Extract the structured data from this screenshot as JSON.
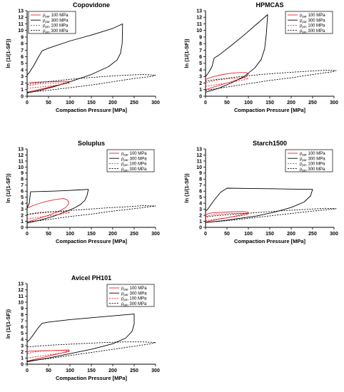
{
  "chart_data": [
    {
      "type": "line",
      "title": "Copovidone",
      "xlabel": "Compaction Pressure [MPa]",
      "ylabel": "ln (1/(1-SF))",
      "xlim": [
        0,
        300
      ],
      "ylim": [
        0,
        13
      ],
      "xticks": [
        0,
        50,
        100,
        150,
        200,
        250,
        300
      ],
      "yticks": [
        0,
        1,
        2,
        3,
        4,
        5,
        6,
        7,
        8,
        9,
        10,
        11,
        12,
        13
      ],
      "grid": false,
      "legend": "top-left",
      "legend_entries": [
        {
          "symbol": "ρ",
          "sub": "par",
          "label": "100 MPa",
          "color": "#e8242b",
          "dash": "solid"
        },
        {
          "symbol": "ρ",
          "sub": "par",
          "label": "300 MPa",
          "color": "#000000",
          "dash": "solid"
        },
        {
          "symbol": "ρ",
          "sub": "pm",
          "label": "100 MPa",
          "color": "#e8242b",
          "dash": "dotted"
        },
        {
          "symbol": "ρ",
          "sub": "pm",
          "label": "300 MPa",
          "color": "#000000",
          "dash": "dotted"
        }
      ],
      "series": [
        {
          "color": "#e8242b",
          "dash": "solid",
          "x": [
            0,
            20,
            50,
            80,
            97,
            98,
            80,
            50,
            25,
            10,
            4
          ],
          "y": [
            0.6,
            0.9,
            1.35,
            1.8,
            2.1,
            2.25,
            2.25,
            2.2,
            2.15,
            2.1,
            2.05
          ]
        },
        {
          "color": "#000000",
          "dash": "solid",
          "x": [
            0,
            30,
            60,
            100,
            150,
            190,
            210,
            218,
            222,
            223,
            200,
            150,
            100,
            50,
            35,
            25,
            15,
            5,
            0
          ],
          "y": [
            0.5,
            0.9,
            1.4,
            2.2,
            3.3,
            4.5,
            5.5,
            6.5,
            8.0,
            11.0,
            10.3,
            9.3,
            8.4,
            7.3,
            6.9,
            5.8,
            4.6,
            3.6,
            3.2
          ]
        },
        {
          "color": "#e8242b",
          "dash": "dotted",
          "x": [
            0,
            30,
            60,
            90,
            100,
            90,
            60,
            30,
            10,
            0
          ],
          "y": [
            1.2,
            1.4,
            1.6,
            1.9,
            2.0,
            2.05,
            2.0,
            1.9,
            1.7,
            1.5
          ]
        },
        {
          "color": "#000000",
          "dash": "dotted",
          "x": [
            0,
            50,
            100,
            150,
            200,
            250,
            290,
            300,
            270,
            230,
            180,
            120,
            60,
            20,
            0
          ],
          "y": [
            0.6,
            0.9,
            1.3,
            1.7,
            2.2,
            2.7,
            3.0,
            3.2,
            3.3,
            3.2,
            3.0,
            2.7,
            2.3,
            2.0,
            1.8
          ]
        }
      ]
    },
    {
      "type": "line",
      "title": "HPMCAS",
      "xlabel": "Compaction Pressure [MPa]",
      "ylabel": "ln (1/(1-SF))",
      "xlim": [
        0,
        300
      ],
      "ylim": [
        0,
        13
      ],
      "xticks": [
        0,
        50,
        100,
        150,
        200,
        250,
        300
      ],
      "yticks": [
        0,
        1,
        2,
        3,
        4,
        5,
        6,
        7,
        8,
        9,
        10,
        11,
        12,
        13
      ],
      "grid": false,
      "legend": "top-right",
      "legend_entries": [
        {
          "symbol": "ρ",
          "sub": "par",
          "label": "100 MPa",
          "color": "#e8242b",
          "dash": "solid"
        },
        {
          "symbol": "ρ",
          "sub": "par",
          "label": "300 MPa",
          "color": "#000000",
          "dash": "solid"
        },
        {
          "symbol": "ρ",
          "sub": "pm",
          "label": "100 MPa",
          "color": "#e8242b",
          "dash": "dotted"
        },
        {
          "symbol": "ρ",
          "sub": "pm",
          "label": "300 MPa",
          "color": "#000000",
          "dash": "dotted"
        }
      ],
      "series": [
        {
          "color": "#e8242b",
          "dash": "solid",
          "x": [
            0,
            20,
            50,
            80,
            95,
            100,
            95,
            80,
            60,
            40,
            20,
            5,
            0
          ],
          "y": [
            1.0,
            1.4,
            2.0,
            2.6,
            3.0,
            3.4,
            3.6,
            3.6,
            3.5,
            3.3,
            3.0,
            2.7,
            2.5
          ]
        },
        {
          "color": "#000000",
          "dash": "solid",
          "x": [
            0,
            30,
            60,
            90,
            115,
            130,
            138,
            142,
            145,
            120,
            90,
            60,
            30,
            20,
            15,
            10,
            5,
            0
          ],
          "y": [
            0.6,
            1.2,
            2.0,
            3.0,
            4.3,
            5.6,
            7.2,
            9.5,
            12.4,
            11.0,
            9.3,
            7.7,
            6.2,
            5.8,
            4.5,
            3.9,
            3.4,
            3.0
          ]
        },
        {
          "color": "#e8242b",
          "dash": "dotted",
          "x": [
            0,
            30,
            60,
            90,
            100,
            90,
            60,
            30,
            10,
            0
          ],
          "y": [
            1.5,
            1.8,
            2.1,
            2.5,
            2.7,
            2.8,
            2.7,
            2.5,
            2.2,
            2.0
          ]
        },
        {
          "color": "#000000",
          "dash": "dotted",
          "x": [
            0,
            50,
            100,
            150,
            200,
            250,
            295,
            305,
            280,
            240,
            190,
            130,
            70,
            20,
            0
          ],
          "y": [
            0.9,
            1.4,
            1.9,
            2.4,
            2.8,
            3.3,
            3.7,
            3.9,
            3.95,
            3.8,
            3.6,
            3.3,
            2.9,
            2.5,
            2.3
          ]
        }
      ]
    },
    {
      "type": "line",
      "title": "Soluplus",
      "xlabel": "Compaction Pressure [MPa]",
      "ylabel": "ln (1/(1-SF))",
      "xlim": [
        0,
        300
      ],
      "ylim": [
        0,
        13
      ],
      "xticks": [
        0,
        50,
        100,
        150,
        200,
        250,
        300
      ],
      "yticks": [
        0,
        1,
        2,
        3,
        4,
        5,
        6,
        7,
        8,
        9,
        10,
        11,
        12,
        13
      ],
      "grid": false,
      "legend": "top-right",
      "legend_entries": [
        {
          "symbol": "ρ",
          "sub": "par",
          "label": "100 MPa",
          "color": "#e8242b",
          "dash": "solid"
        },
        {
          "symbol": "ρ",
          "sub": "par",
          "label": "300 MPa",
          "color": "#000000",
          "dash": "solid"
        },
        {
          "symbol": "ρ",
          "sub": "pm",
          "label": "100 MPa",
          "color": "#e8242b",
          "dash": "dotted"
        },
        {
          "symbol": "ρ",
          "sub": "pm",
          "label": "300 MPa",
          "color": "#000000",
          "dash": "dotted"
        }
      ],
      "series": [
        {
          "color": "#e8242b",
          "dash": "solid",
          "x": [
            0,
            20,
            50,
            75,
            90,
            97,
            95,
            85,
            65,
            45,
            25,
            10,
            0
          ],
          "y": [
            0.9,
            1.3,
            2.0,
            2.7,
            3.3,
            3.9,
            4.5,
            4.8,
            4.6,
            4.3,
            3.9,
            3.5,
            3.2
          ]
        },
        {
          "color": "#000000",
          "dash": "solid",
          "x": [
            0,
            30,
            60,
            90,
            110,
            125,
            135,
            140,
            143,
            120,
            90,
            60,
            30,
            8,
            5,
            0
          ],
          "y": [
            0.7,
            1.2,
            1.8,
            2.6,
            3.2,
            3.8,
            4.5,
            5.3,
            6.3,
            6.2,
            6.1,
            6.0,
            5.95,
            5.9,
            4.0,
            3.2
          ]
        },
        {
          "color": "#e8242b",
          "dash": "dotted",
          "x": [
            0,
            30,
            60,
            90,
            100,
            90,
            60,
            30,
            10,
            0
          ],
          "y": [
            1.4,
            1.7,
            2.0,
            2.3,
            2.5,
            2.6,
            2.6,
            2.5,
            2.3,
            2.1
          ]
        },
        {
          "color": "#000000",
          "dash": "dotted",
          "x": [
            0,
            50,
            100,
            150,
            200,
            250,
            295,
            300,
            270,
            230,
            180,
            120,
            60,
            20,
            0
          ],
          "y": [
            0.9,
            1.3,
            1.8,
            2.2,
            2.7,
            3.1,
            3.5,
            3.55,
            3.6,
            3.4,
            3.2,
            2.9,
            2.6,
            2.3,
            2.1
          ]
        }
      ]
    },
    {
      "type": "line",
      "title": "Starch1500",
      "xlabel": "Compaction Pressure [MPa]",
      "ylabel": "ln (1/(1-SF))",
      "xlim": [
        0,
        300
      ],
      "ylim": [
        0,
        13
      ],
      "xticks": [
        0,
        50,
        100,
        150,
        200,
        250,
        300
      ],
      "yticks": [
        0,
        1,
        2,
        3,
        4,
        5,
        6,
        7,
        8,
        9,
        10,
        11,
        12,
        13
      ],
      "grid": false,
      "legend": "top-right",
      "legend_entries": [
        {
          "symbol": "ρ",
          "sub": "par",
          "label": "100 MPa",
          "color": "#e8242b",
          "dash": "solid"
        },
        {
          "symbol": "ρ",
          "sub": "par",
          "label": "300 MPa",
          "color": "#000000",
          "dash": "solid"
        },
        {
          "symbol": "ρ",
          "sub": "pm",
          "label": "100 MPa",
          "color": "#e8242b",
          "dash": "dotted"
        },
        {
          "symbol": "ρ",
          "sub": "pm",
          "label": "300 MPa",
          "color": "#000000",
          "dash": "dotted"
        }
      ],
      "series": [
        {
          "color": "#e8242b",
          "dash": "solid",
          "x": [
            0,
            20,
            50,
            80,
            97,
            100,
            90,
            70,
            40,
            15,
            3,
            0
          ],
          "y": [
            0.9,
            1.2,
            1.6,
            2.0,
            2.3,
            2.5,
            2.6,
            2.6,
            2.5,
            2.4,
            2.2,
            2.0
          ]
        },
        {
          "color": "#000000",
          "dash": "solid",
          "x": [
            0,
            40,
            80,
            120,
            160,
            200,
            230,
            245,
            250,
            200,
            150,
            100,
            50,
            35,
            20,
            10,
            5,
            0
          ],
          "y": [
            0.8,
            1.1,
            1.5,
            1.9,
            2.5,
            3.3,
            4.2,
            5.2,
            6.3,
            6.35,
            6.4,
            6.45,
            6.5,
            5.8,
            4.5,
            3.5,
            3.0,
            2.7
          ]
        },
        {
          "color": "#e8242b",
          "dash": "dotted",
          "x": [
            0,
            30,
            60,
            90,
            100,
            90,
            60,
            30,
            10,
            0
          ],
          "y": [
            1.1,
            1.4,
            1.7,
            2.0,
            2.2,
            2.3,
            2.3,
            2.2,
            2.0,
            1.8
          ]
        },
        {
          "color": "#000000",
          "dash": "dotted",
          "x": [
            0,
            50,
            100,
            150,
            200,
            250,
            295,
            305,
            280,
            240,
            190,
            130,
            70,
            20,
            0
          ],
          "y": [
            0.8,
            1.1,
            1.5,
            1.9,
            2.3,
            2.7,
            3.0,
            3.1,
            3.15,
            3.0,
            2.8,
            2.5,
            2.2,
            1.9,
            1.7
          ]
        }
      ]
    },
    {
      "type": "line",
      "title": "Avicel PH101",
      "xlabel": "Compaction Pressure [MPa]",
      "ylabel": "ln (1/(1-SF))",
      "xlim": [
        0,
        300
      ],
      "ylim": [
        0,
        13
      ],
      "xticks": [
        0,
        50,
        100,
        150,
        200,
        250,
        300
      ],
      "yticks": [
        0,
        1,
        2,
        3,
        4,
        5,
        6,
        7,
        8,
        9,
        10,
        11,
        12,
        13
      ],
      "grid": false,
      "legend": "top-right",
      "legend_entries": [
        {
          "symbol": "ρ",
          "sub": "par",
          "label": "100 MPa",
          "color": "#e8242b",
          "dash": "solid"
        },
        {
          "symbol": "ρ",
          "sub": "par",
          "label": "300 MPa",
          "color": "#000000",
          "dash": "solid"
        },
        {
          "symbol": "ρ",
          "sub": "pm",
          "label": "100 MPa",
          "color": "#e8242b",
          "dash": "dotted"
        },
        {
          "symbol": "ρ",
          "sub": "pm",
          "label": "300 MPa",
          "color": "#000000",
          "dash": "dotted"
        }
      ],
      "series": [
        {
          "color": "#e8242b",
          "dash": "solid",
          "x": [
            0,
            20,
            50,
            80,
            97,
            98,
            80,
            50,
            20,
            5,
            0
          ],
          "y": [
            0.5,
            0.8,
            1.3,
            1.8,
            2.1,
            2.3,
            2.25,
            2.2,
            2.15,
            2.1,
            2.0
          ]
        },
        {
          "color": "#000000",
          "dash": "solid",
          "x": [
            0,
            50,
            100,
            150,
            200,
            230,
            245,
            250,
            250,
            200,
            150,
            100,
            50,
            35,
            25,
            15,
            5,
            0
          ],
          "y": [
            0.4,
            1.0,
            1.7,
            2.4,
            3.3,
            4.2,
            5.3,
            6.5,
            8.1,
            7.8,
            7.5,
            7.2,
            6.8,
            6.6,
            5.8,
            4.8,
            3.9,
            3.6
          ]
        },
        {
          "color": "#e8242b",
          "dash": "dotted",
          "x": [
            0,
            30,
            60,
            90,
            100,
            90,
            60,
            30,
            10,
            0
          ],
          "y": [
            1.0,
            1.3,
            1.6,
            1.9,
            2.1,
            2.2,
            2.2,
            2.1,
            1.9,
            1.7
          ]
        },
        {
          "color": "#000000",
          "dash": "dotted",
          "x": [
            0,
            50,
            100,
            150,
            200,
            250,
            290,
            300,
            270,
            230,
            180,
            120,
            60,
            20,
            0
          ],
          "y": [
            0.5,
            0.9,
            1.4,
            1.9,
            2.4,
            2.9,
            3.3,
            3.5,
            3.6,
            3.6,
            3.5,
            3.3,
            3.1,
            2.9,
            2.8
          ]
        }
      ]
    }
  ]
}
